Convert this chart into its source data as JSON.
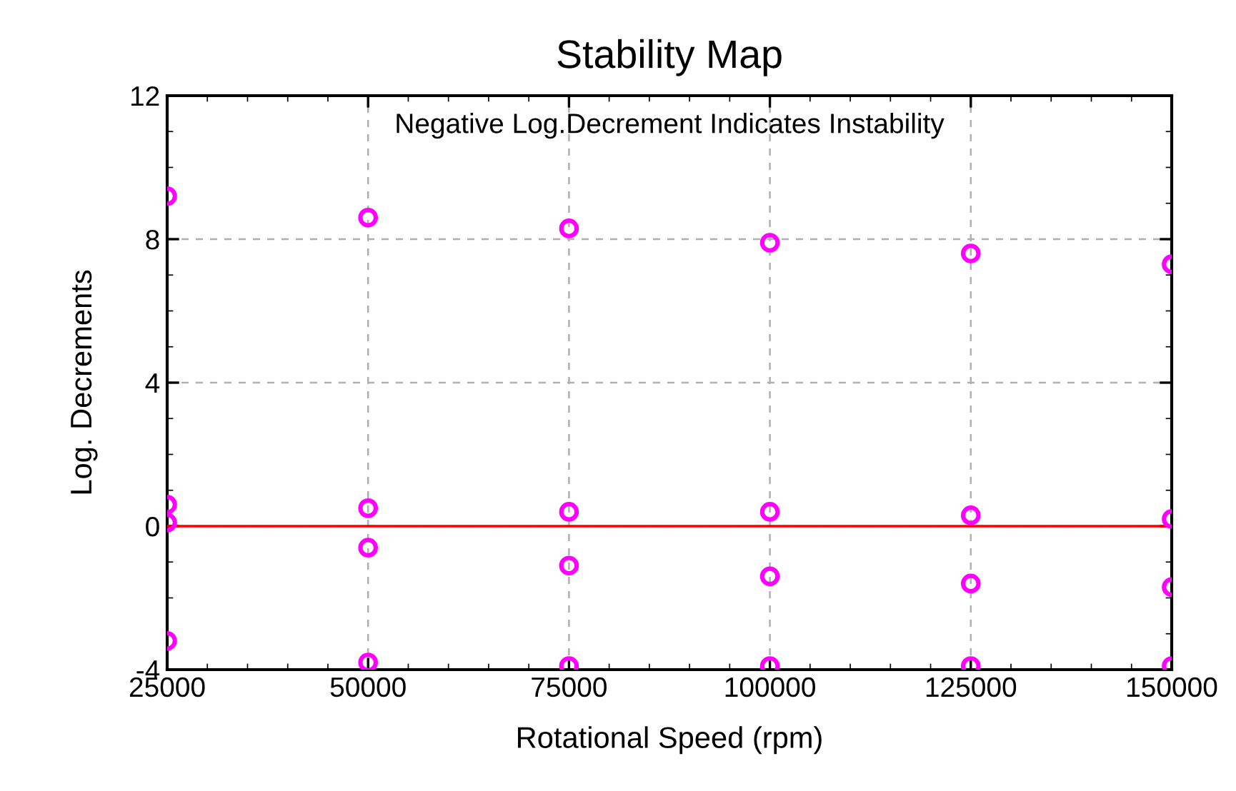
{
  "chart_data": {
    "type": "scatter",
    "title": "Stability Map",
    "xlabel": "Rotational Speed (rpm)",
    "ylabel": "Log. Decrements",
    "annotations": [
      "Negative Log.Decrement Indicates Instability"
    ],
    "series": [
      {
        "color": "#ff00ff",
        "x": [
          25000,
          25000,
          25000,
          25000,
          50000,
          50000,
          50000,
          50000,
          75000,
          75000,
          75000,
          75000,
          100000,
          100000,
          100000,
          100000,
          125000,
          125000,
          125000,
          125000,
          150000,
          150000,
          150000,
          150000
        ],
        "values": [
          9.2,
          0.6,
          0.1,
          -3.2,
          8.6,
          0.5,
          -0.6,
          -3.8,
          8.3,
          0.4,
          -1.1,
          -3.9,
          7.9,
          0.4,
          -1.4,
          -3.9,
          7.6,
          0.3,
          -1.6,
          -3.9,
          7.3,
          0.2,
          -1.7,
          -3.9
        ]
      }
    ],
    "xlim": [
      25000,
      150000
    ],
    "xticks": [
      25000,
      50000,
      75000,
      100000,
      125000,
      150000
    ],
    "ylim": [
      -4,
      12
    ],
    "yticks": [
      -4,
      0,
      4,
      8,
      12
    ],
    "ref_lines": [
      {
        "axis": "y",
        "value": 0,
        "color": "#ff0000",
        "line_style": "solid"
      }
    ],
    "grid": true,
    "marker": "circle",
    "legend": false
  }
}
